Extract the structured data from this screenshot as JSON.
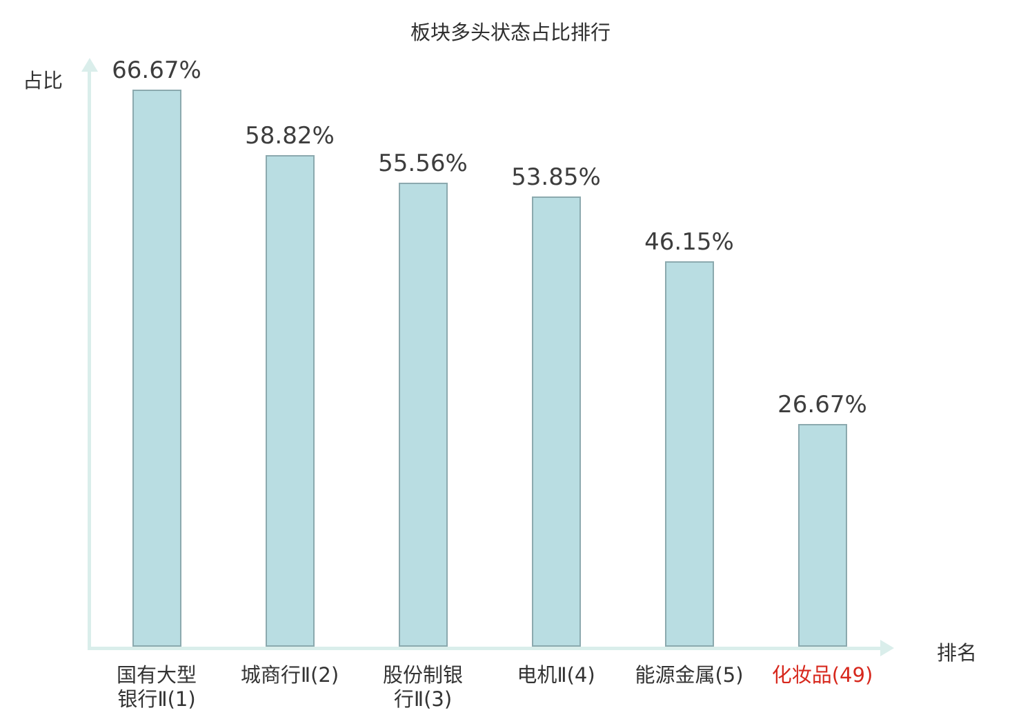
{
  "chart": {
    "title": "板块多头状态占比排行",
    "y_axis_label": "占比",
    "x_axis_label": "排名"
  },
  "chart_data": {
    "type": "bar",
    "title": "板块多头状态占比排行",
    "xlabel": "排名",
    "ylabel": "占比",
    "categories": [
      "国有大型银行Ⅱ(1)",
      "城商行Ⅱ(2)",
      "股份制银行Ⅱ(3)",
      "电机Ⅱ(4)",
      "能源金属(5)",
      "化妆品(49)"
    ],
    "category_display": [
      "国有大型\n银行Ⅱ(1)",
      "城商行Ⅱ(2)",
      "股份制银\n行Ⅱ(3)",
      "电机Ⅱ(4)",
      "能源金属(5)",
      "化妆品(49)"
    ],
    "values": [
      66.67,
      58.82,
      55.56,
      53.85,
      46.15,
      26.67
    ],
    "value_labels": [
      "66.67%",
      "58.82%",
      "55.56%",
      "53.85%",
      "46.15%",
      "26.67%"
    ],
    "ylim": [
      0,
      70
    ],
    "grid": false,
    "legend": "none",
    "highlight_index": 5,
    "colors": {
      "bar_fill": "#b9dde2",
      "bar_border": "#8ba9ae",
      "axis": "#daeeeb",
      "text": "#333333",
      "value_text": "#3d3d3d",
      "highlight_text": "#d7281d"
    }
  }
}
